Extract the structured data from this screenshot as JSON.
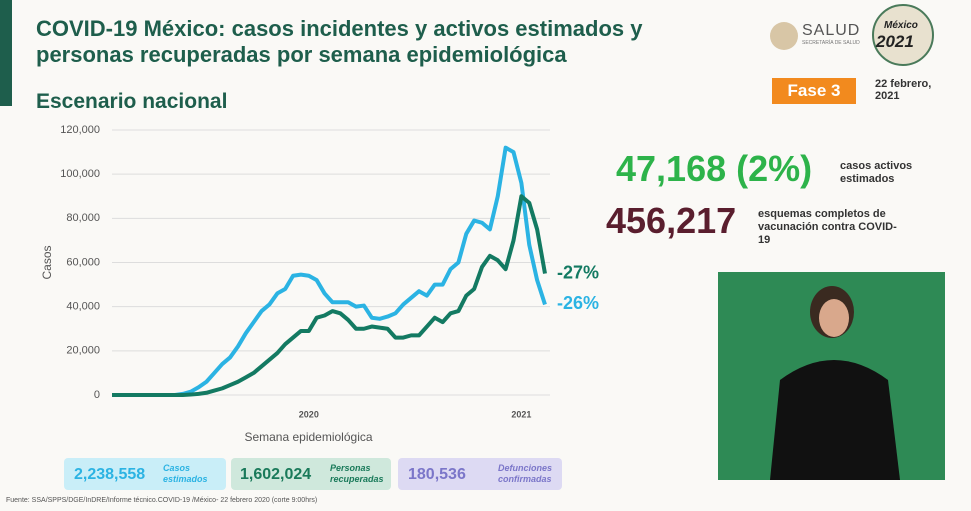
{
  "header": {
    "title": "COVID-19 México: casos incidentes y activos estimados y personas recuperadas por semana epidemiológica",
    "subtitle": "Escenario nacional",
    "logo": "SALUD",
    "logo_sub": "SECRETARÍA DE SALUD",
    "emblem_top": "México",
    "emblem_year": "2021",
    "phase": "Fase 3",
    "date": "22 febrero, 2021"
  },
  "stats": [
    {
      "value": "47,168 (2%)",
      "text": "casos activos estimados"
    },
    {
      "value": "456,217",
      "text": "esquemas completos de vacunación contra COVID-19"
    }
  ],
  "totals": [
    {
      "value": "2,238,558",
      "text": "Casos estimados"
    },
    {
      "value": "1,602,024",
      "text": "Personas recuperadas"
    },
    {
      "value": "180,536",
      "text": "Defunciones confirmadas"
    }
  ],
  "source": "Fuente: SSA/SPPS/DGE/InDRE/Informe técnico.COVID-19 /México- 22 febrero 2020 (corte 9:00hrs)",
  "chart_data": {
    "type": "line",
    "x_label": "Semana epidemiológica",
    "y_label": "Casos",
    "categories": [
      null,
      null,
      null,
      null,
      null,
      null,
      null,
      null,
      null,
      null,
      null,
      null,
      null,
      null,
      null,
      null,
      null,
      null,
      null,
      null,
      null,
      null,
      null,
      null,
      null,
      "2020",
      null,
      null,
      null,
      null,
      null,
      null,
      null,
      null,
      null,
      null,
      null,
      null,
      null,
      null,
      null,
      null,
      null,
      null,
      null,
      null,
      null,
      null,
      null,
      null,
      null,
      null,
      "2021",
      null,
      null,
      null
    ],
    "ylim": [
      0,
      120000
    ],
    "yticks": [
      0,
      {
        "value": 20000,
        "label": "20,000"
      },
      {
        "value": 40000,
        "label": "40,000"
      },
      {
        "value": 60000,
        "label": "60,000"
      },
      {
        "value": 80000,
        "label": "80,000"
      },
      {
        "value": 100000,
        "label": "100,000"
      },
      {
        "value": 120000,
        "label": "120,000"
      }
    ],
    "grid": true,
    "series": [
      {
        "color": "#2bb3e3",
        "end_label": "-26%",
        "values": [
          0,
          0,
          0,
          0,
          0,
          0,
          0,
          0,
          0,
          500,
          1500,
          3500,
          6000,
          10000,
          14000,
          17000,
          22000,
          28000,
          33000,
          38000,
          41000,
          46000,
          48000,
          54000,
          54500,
          54000,
          52000,
          46000,
          42000,
          42000,
          42000,
          40000,
          40500,
          35000,
          34500,
          35500,
          37000,
          41000,
          44000,
          47000,
          45000,
          50000,
          50000,
          57000,
          60000,
          73000,
          79000,
          78000,
          75000,
          90000,
          112000,
          110000,
          96000,
          68000,
          52000,
          41000
        ]
      },
      {
        "color": "#137a62",
        "end_label": "-27%",
        "values": [
          0,
          0,
          0,
          0,
          0,
          0,
          0,
          0,
          0,
          0,
          200,
          500,
          1000,
          2000,
          3000,
          4500,
          6000,
          8000,
          10000,
          13000,
          16000,
          19000,
          23000,
          26000,
          29000,
          29000,
          35000,
          36000,
          38000,
          37000,
          34000,
          30000,
          30000,
          31000,
          30500,
          30000,
          26000,
          26000,
          27000,
          27000,
          31000,
          35000,
          33000,
          37000,
          38000,
          45000,
          48000,
          58000,
          63000,
          61000,
          57000,
          70000,
          90000,
          87000,
          75000,
          55000
        ]
      }
    ]
  }
}
